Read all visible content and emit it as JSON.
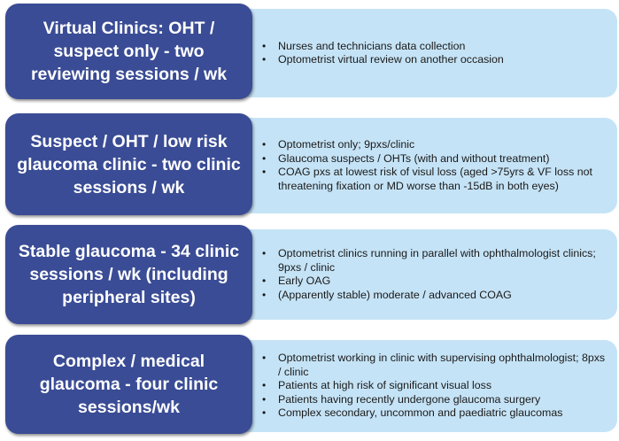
{
  "rows": [
    {
      "title": "Virtual Clinics: OHT / suspect only - two reviewing sessions / wk",
      "bullets": [
        "Nurses and technicians data collection",
        "Optometrist virtual review on another occasion"
      ]
    },
    {
      "title": "Suspect / OHT / low risk glaucoma clinic - two clinic sessions / wk",
      "bullets": [
        "Optometrist only; 9pxs/clinic",
        "Glaucoma suspects / OHTs (with and without treatment)",
        "COAG pxs at lowest risk of visul loss (aged >75yrs & VF loss not threatening fixation or MD worse than -15dB in both eyes)"
      ]
    },
    {
      "title": "Stable glaucoma - 34 clinic sessions / wk (including peripheral sites)",
      "bullets": [
        "Optometrist clinics running in parallel with ophthalmologist clinics; 9pxs / clinic",
        "Early OAG",
        "(Apparently stable) moderate / advanced COAG"
      ]
    },
    {
      "title": "Complex / medical glaucoma - four clinic sessions/wk",
      "bullets": [
        "Optometrist working in clinic with supervising ophthalmologist; 8pxs / clinic",
        "Patients at high risk of significant visual loss",
        "Patients having recently undergone glaucoma surgery",
        "Complex secondary, uncommon and paediatric glaucomas"
      ]
    }
  ]
}
